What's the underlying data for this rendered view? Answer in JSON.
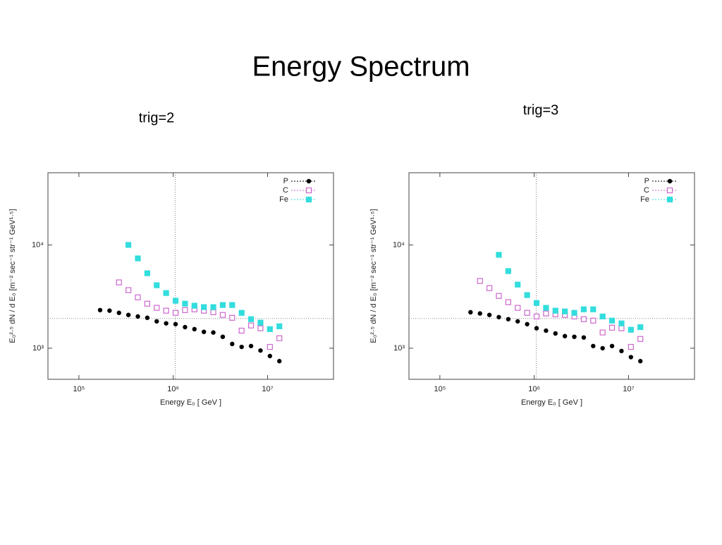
{
  "title": "Energy Spectrum",
  "chart_data": [
    {
      "type": "scatter",
      "title": "trig=2",
      "xlabel": "Energy E₀ [ GeV ]",
      "ylabel": "E₀²·⁵ dN / d E₀ [m⁻² sec⁻¹ str⁻¹ GeV¹·⁵]",
      "xscale": "log",
      "yscale": "log",
      "xlim": [
        47000,
        50000000
      ],
      "ylim": [
        500,
        50000
      ],
      "xticks": [
        {
          "value": 100000,
          "label": "10⁵"
        },
        {
          "value": 1000000,
          "label": "10⁶"
        },
        {
          "value": 10000000,
          "label": "10⁷"
        }
      ],
      "yticks": [
        {
          "value": 1000,
          "label": "10³"
        },
        {
          "value": 10000,
          "label": "10⁴"
        }
      ],
      "reference_x": 1050000,
      "reference_y": 1940,
      "legend": "upper right",
      "series": [
        {
          "name": "P",
          "color": "#000000",
          "marker": "circle",
          "x": [
            167900,
            211300,
            266100,
            335000,
            421700,
            530900,
            668300,
            841400,
            1059000,
            1334000,
            1679000,
            2113000,
            2661000,
            3350000,
            4217000,
            5309000,
            6683000,
            8414000,
            10590000,
            13340000
          ],
          "values": [
            2340,
            2310,
            2200,
            2100,
            2030,
            1970,
            1820,
            1740,
            1710,
            1600,
            1530,
            1440,
            1420,
            1290,
            1100,
            1030,
            1050,
            950,
            840,
            750
          ]
        },
        {
          "name": "C",
          "color": "#cc66cc",
          "marker": "open-square",
          "x": [
            266100,
            335000,
            421700,
            530900,
            668300,
            841400,
            1059000,
            1334000,
            1679000,
            2113000,
            2661000,
            3350000,
            4217000,
            5309000,
            6683000,
            8414000,
            10590000,
            13340000
          ],
          "values": [
            4340,
            3650,
            3110,
            2700,
            2460,
            2310,
            2200,
            2340,
            2380,
            2310,
            2230,
            2100,
            1970,
            1480,
            1660,
            1560,
            1030,
            1250
          ]
        },
        {
          "name": "Fe",
          "color": "#33dddd",
          "marker": "square",
          "x": [
            335000,
            421700,
            530900,
            668300,
            841400,
            1059000,
            1334000,
            1679000,
            2113000,
            2661000,
            3350000,
            4217000,
            5309000,
            6683000,
            8414000,
            10590000,
            13340000
          ],
          "values": [
            10000,
            7410,
            5320,
            4070,
            3420,
            2880,
            2700,
            2580,
            2500,
            2500,
            2620,
            2620,
            2200,
            1910,
            1770,
            1530,
            1630
          ]
        }
      ]
    },
    {
      "type": "scatter",
      "title": "trig=3",
      "xlabel": "Energy E₀ [ GeV ]",
      "ylabel": "E₀²·⁵ dN / d E₀ [m⁻² sec⁻¹ str⁻¹ GeV¹·⁵]",
      "xscale": "log",
      "yscale": "log",
      "xlim": [
        47000,
        50000000
      ],
      "ylim": [
        500,
        50000
      ],
      "xticks": [
        {
          "value": 100000,
          "label": "10⁵"
        },
        {
          "value": 1000000,
          "label": "10⁶"
        },
        {
          "value": 10000000,
          "label": "10⁷"
        }
      ],
      "yticks": [
        {
          "value": 1000,
          "label": "10³"
        },
        {
          "value": 10000,
          "label": "10⁴"
        }
      ],
      "reference_x": 1050000,
      "reference_y": 1940,
      "legend": "upper right",
      "series": [
        {
          "name": "P",
          "color": "#000000",
          "marker": "circle",
          "x": [
            211300,
            266100,
            335000,
            421700,
            530900,
            668300,
            841400,
            1059000,
            1334000,
            1679000,
            2113000,
            2661000,
            3350000,
            4217000,
            5309000,
            6683000,
            8414000,
            10590000,
            13340000
          ],
          "values": [
            2230,
            2170,
            2100,
            2000,
            1910,
            1820,
            1710,
            1560,
            1480,
            1390,
            1310,
            1290,
            1270,
            1050,
            1000,
            1050,
            940,
            820,
            750
          ]
        },
        {
          "name": "C",
          "color": "#cc66cc",
          "marker": "open-square",
          "x": [
            266100,
            335000,
            421700,
            530900,
            668300,
            841400,
            1059000,
            1334000,
            1679000,
            2113000,
            2661000,
            3350000,
            4217000,
            5309000,
            6683000,
            8414000,
            10590000,
            13340000
          ],
          "values": [
            4480,
            3820,
            3210,
            2790,
            2460,
            2200,
            2030,
            2170,
            2130,
            2100,
            2030,
            1910,
            1850,
            1420,
            1580,
            1560,
            1030,
            1230
          ]
        },
        {
          "name": "Fe",
          "color": "#33dddd",
          "marker": "square",
          "x": [
            421700,
            530900,
            668300,
            841400,
            1059000,
            1334000,
            1679000,
            2113000,
            2661000,
            3350000,
            4217000,
            5309000,
            6683000,
            8414000,
            10590000,
            13340000
          ],
          "values": [
            8020,
            5580,
            4130,
            3270,
            2740,
            2460,
            2310,
            2270,
            2200,
            2380,
            2380,
            2030,
            1850,
            1740,
            1510,
            1600
          ]
        }
      ]
    }
  ]
}
